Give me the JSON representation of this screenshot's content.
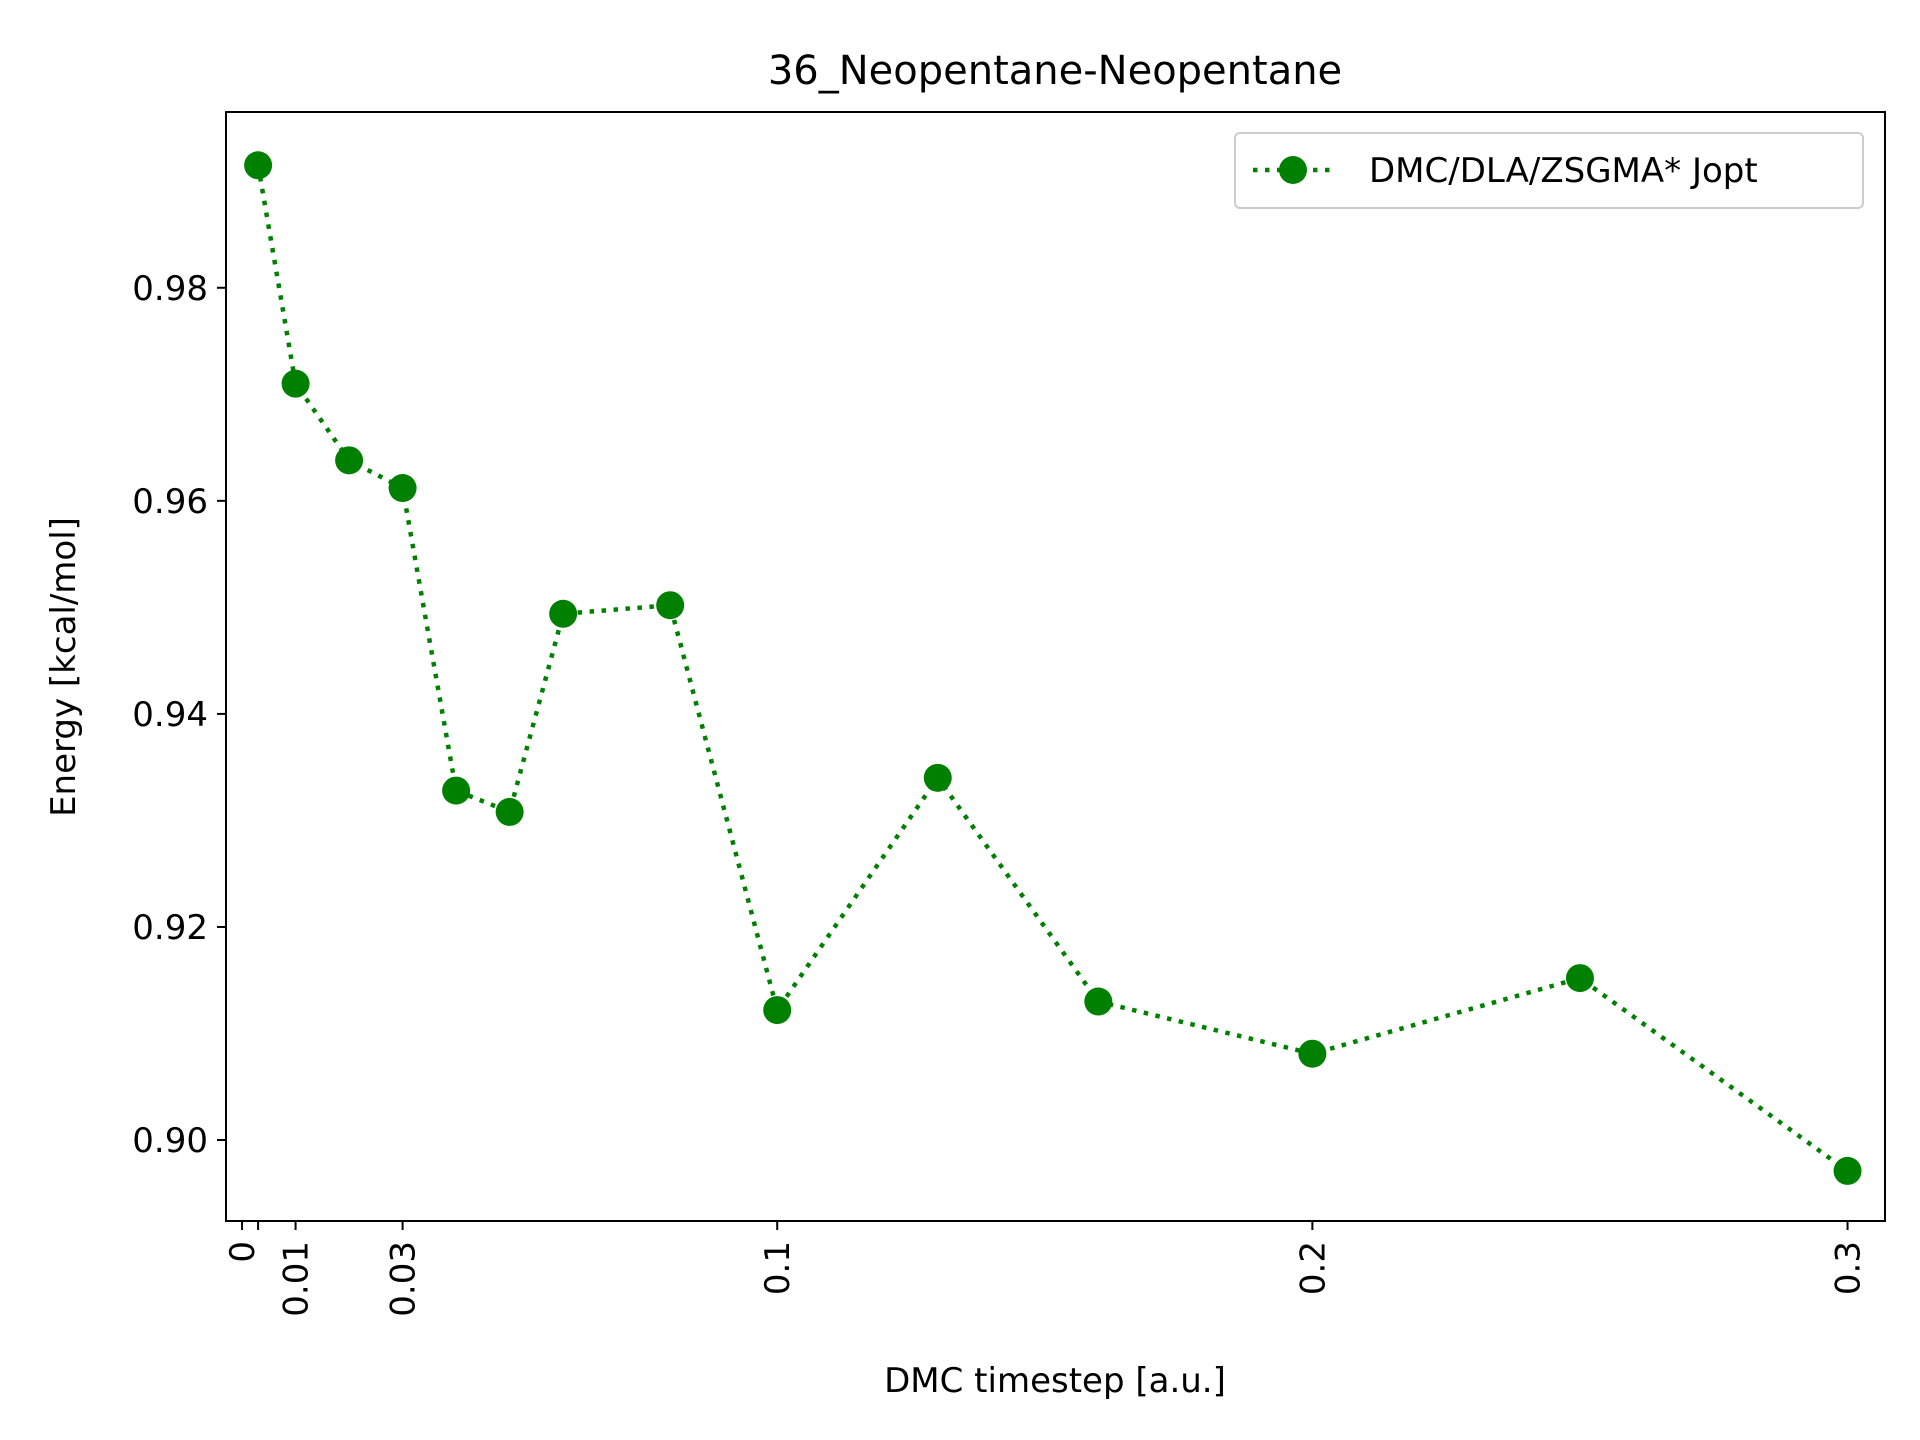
{
  "chart_data": {
    "type": "line",
    "title": "36_Neopentane-Neopentane",
    "xlabel": "DMC timestep [a.u.]",
    "ylabel": "Energy [kcal/mol]",
    "xlim": [
      -0.003,
      0.307
    ],
    "ylim": [
      0.8924,
      0.9965
    ],
    "xticks": [
      0,
      0.003,
      0.01,
      0.03,
      0.1,
      0.2,
      0.3
    ],
    "xtick_labels": [
      "0",
      "",
      "0.01",
      "0.03",
      "0.1",
      "0.2",
      "0.3"
    ],
    "yticks": [
      0.9,
      0.92,
      0.94,
      0.96,
      0.98
    ],
    "ytick_labels": [
      "0.90",
      "0.92",
      "0.94",
      "0.96",
      "0.98"
    ],
    "grid": false,
    "legend_position": "top-right",
    "series": [
      {
        "name": "DMC/DLA/ZSGMA* Jopt",
        "color": "#008000",
        "linestyle": "dotted",
        "marker": "circle",
        "x": [
          0.003,
          0.01,
          0.02,
          0.03,
          0.04,
          0.05,
          0.06,
          0.08,
          0.1,
          0.13,
          0.16,
          0.2,
          0.25,
          0.3
        ],
        "y": [
          0.9915,
          0.971,
          0.9638,
          0.9612,
          0.9328,
          0.9308,
          0.9494,
          0.9502,
          0.9122,
          0.934,
          0.913,
          0.9081,
          0.9152,
          0.8971
        ]
      }
    ]
  }
}
